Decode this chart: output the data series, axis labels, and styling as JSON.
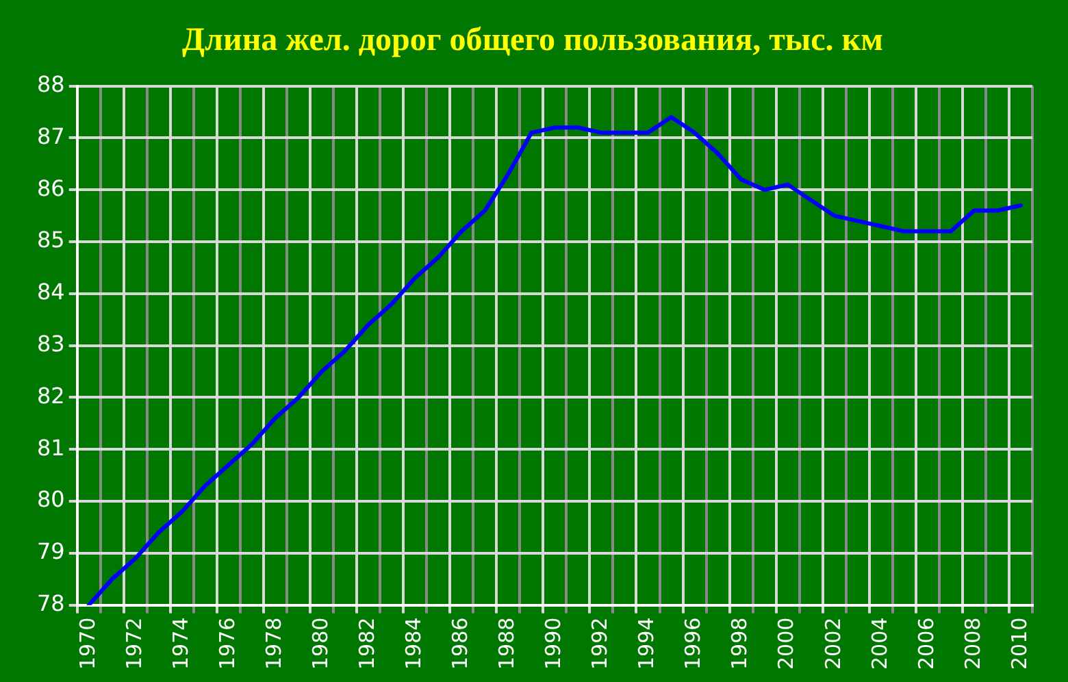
{
  "chart_data": {
    "type": "line",
    "title": "Длина жел. дорог общего пользования, тыс. км",
    "categories": [
      "1970",
      null,
      "1972",
      null,
      "1974",
      null,
      "1976",
      null,
      "1978",
      null,
      "1980",
      null,
      "1982",
      null,
      "1984",
      null,
      "1986",
      null,
      "1988",
      null,
      "1990",
      null,
      "1992",
      null,
      "1994",
      null,
      "1996",
      null,
      "1998",
      null,
      "2000",
      null,
      "2002",
      null,
      "2004",
      null,
      "2006",
      null,
      "2008",
      null,
      "2010"
    ],
    "series": [
      {
        "color": "#0000ff",
        "values": [
          78.0,
          78.5,
          78.9,
          79.4,
          79.8,
          80.3,
          80.7,
          81.1,
          81.6,
          82.0,
          82.5,
          82.9,
          83.4,
          83.8,
          84.3,
          84.7,
          85.2,
          85.6,
          86.3,
          87.1,
          87.2,
          87.2,
          87.1,
          87.1,
          87.1,
          87.4,
          87.1,
          86.7,
          86.2,
          86.0,
          86.1,
          85.8,
          85.5,
          85.4,
          85.3,
          85.2,
          85.2,
          85.2,
          85.6,
          85.6,
          85.7
        ]
      }
    ],
    "ylim": [
      78,
      88
    ],
    "yticks": [
      78,
      79,
      80,
      81,
      82,
      83,
      84,
      85,
      86,
      87,
      88
    ],
    "grid": true,
    "legend": false,
    "marker": "none",
    "line_style": "solid"
  }
}
